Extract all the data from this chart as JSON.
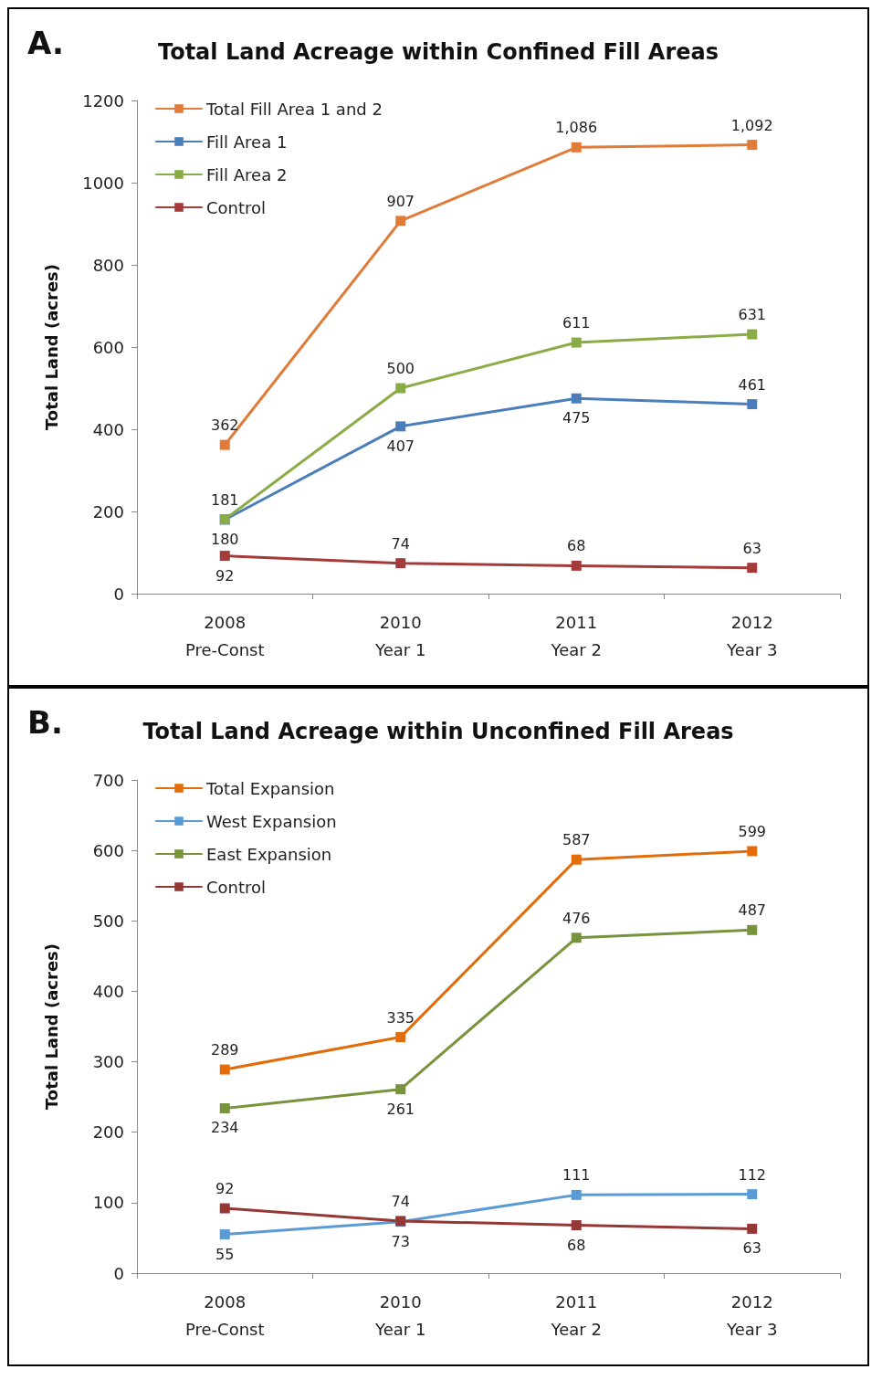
{
  "chart_data": [
    {
      "type": "line",
      "title": "Total Land Acreage within Confined Fill Areas",
      "ylabel": "Total Land (acres)",
      "annotations": [
        "A."
      ],
      "categories": [
        "2008\nPre-Const",
        "2010\nYear 1",
        "2011\nYear 2",
        "2012\nYear 3"
      ],
      "ylim": [
        0,
        1200
      ],
      "yticks": [
        0,
        200,
        400,
        600,
        800,
        1000,
        1200
      ],
      "grid": false,
      "legend": "top left",
      "marker": "square",
      "line_style": "solid",
      "data_labels": true,
      "series": [
        {
          "name": "Total Fill Area 1 and 2",
          "color": "#e07b39",
          "values": [
            362,
            907,
            1086,
            1092
          ],
          "value_labels": [
            "362",
            "907",
            "1,086",
            "1,092"
          ]
        },
        {
          "name": "Fill Area 1",
          "color": "#4a7ebb",
          "values": [
            180,
            407,
            475,
            461
          ]
        },
        {
          "name": "Fill Area 2",
          "color": "#8aac46",
          "values": [
            181,
            500,
            611,
            631
          ]
        },
        {
          "name": "Control",
          "color": "#a33b3a",
          "values": [
            92,
            74,
            68,
            63
          ]
        }
      ]
    },
    {
      "type": "line",
      "title": "Total Land Acreage within Unconfined Fill Areas",
      "ylabel": "Total Land (acres)",
      "annotations": [
        "B."
      ],
      "categories": [
        "2008\nPre-Const",
        "2010\nYear 1",
        "2011\nYear 2",
        "2012\nYear 3"
      ],
      "ylim": [
        0,
        700
      ],
      "yticks": [
        0,
        100,
        200,
        300,
        400,
        500,
        600,
        700
      ],
      "grid": false,
      "legend": "top left",
      "marker": "square",
      "line_style": "solid",
      "data_labels": true,
      "series": [
        {
          "name": "Total Expansion",
          "color": "#e36c0a",
          "values": [
            289,
            335,
            587,
            599
          ]
        },
        {
          "name": "West Expansion",
          "color": "#5b9bd5",
          "values": [
            55,
            73,
            111,
            112
          ]
        },
        {
          "name": "East Expansion",
          "color": "#77933c",
          "values": [
            234,
            261,
            476,
            487
          ]
        },
        {
          "name": "Control",
          "color": "#953735",
          "values": [
            92,
            74,
            68,
            63
          ]
        }
      ]
    }
  ]
}
